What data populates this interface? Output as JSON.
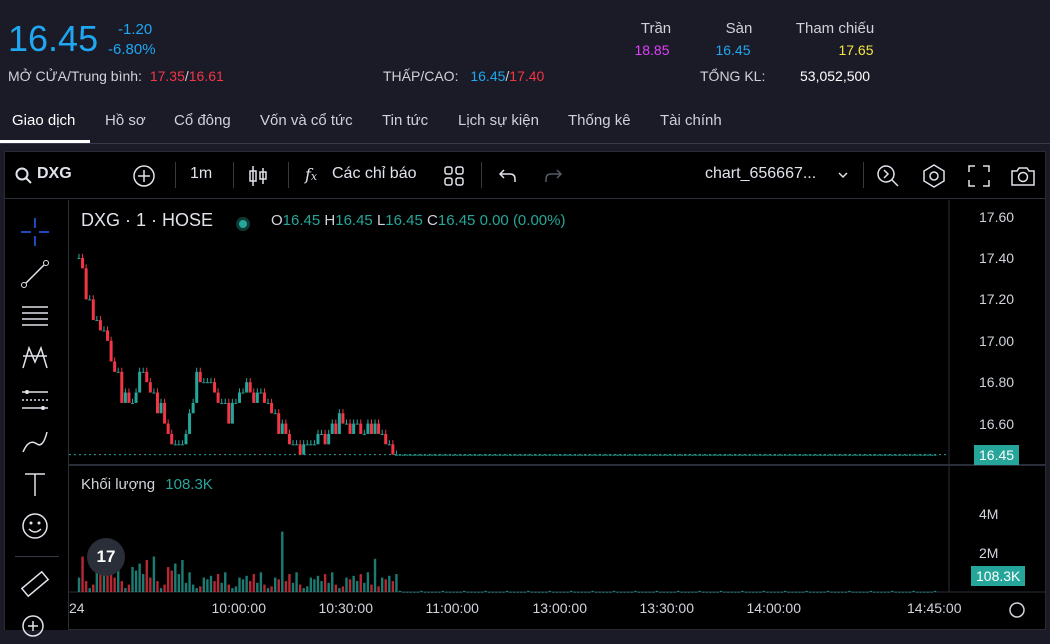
{
  "quote": {
    "price": "16.45",
    "change": "-1.20",
    "change_pct": "-6.80%",
    "open_avg_label": "MỞ CỬA/Trung bình:",
    "open": "17.35",
    "avg": "16.61",
    "low_high_label": "THẤP/CAO:",
    "low": "16.45",
    "high": "17.40",
    "ceiling_label": "Trần",
    "ceiling": "18.85",
    "floor_label": "Sàn",
    "floor": "16.45",
    "ref_label": "Tham chiếu",
    "ref": "17.65",
    "volume_label": "TỔNG KL:",
    "volume": "53,052,500",
    "slash": "/"
  },
  "tabs": [
    "Giao dịch",
    "Hồ sơ",
    "Cổ đông",
    "Vốn và cổ tức",
    "Tin tức",
    "Lịch sự kiện",
    "Thống kê",
    "Tài chính"
  ],
  "toolbar": {
    "symbol": "DXG",
    "interval": "1m",
    "indicators": "Các chỉ báo",
    "layout_name": "chart_656667..."
  },
  "legend": {
    "title": "DXG · 1 · HOSE",
    "o_label": "O",
    "o": "16.45",
    "h_label": "H",
    "h": "16.45",
    "l_label": "L",
    "l": "16.45",
    "c_label": "C",
    "c": "16.45",
    "change": "0.00 (0.00%)",
    "volume_label": "Khối lượng",
    "volume": "108.3K"
  },
  "logo_text": "17",
  "colors": {
    "up": "#26a69a",
    "down": "#f23645",
    "accent": "#1fa7f1",
    "ceiling": "#e040fb",
    "ref": "#f5e642"
  },
  "chart_data": {
    "type": "candlestick",
    "price_axis": {
      "ticks": [
        "17.60",
        "17.40",
        "17.20",
        "17.00",
        "16.80",
        "16.60"
      ],
      "last_price_tag": "16.45",
      "ylim": [
        16.4,
        17.68
      ]
    },
    "volume_axis": {
      "ticks": [
        "4M",
        "2M"
      ],
      "last_volume_tag": "108.3K",
      "ylim": [
        0,
        6000000
      ]
    },
    "x_ticks": [
      "24",
      "10:00:00",
      "10:30:00",
      "11:00:00",
      "13:00:00",
      "13:30:00",
      "14:00:00",
      "14:45:00"
    ],
    "price_path_approx": [
      {
        "t": "09:15",
        "v": 17.4
      },
      {
        "t": "09:18",
        "v": 17.15
      },
      {
        "t": "09:21",
        "v": 17.05
      },
      {
        "t": "09:24",
        "v": 16.95
      },
      {
        "t": "09:27",
        "v": 16.75
      },
      {
        "t": "09:30",
        "v": 16.7
      },
      {
        "t": "09:33",
        "v": 16.85
      },
      {
        "t": "09:36",
        "v": 16.75
      },
      {
        "t": "09:39",
        "v": 16.6
      },
      {
        "t": "09:42",
        "v": 16.48
      },
      {
        "t": "09:45",
        "v": 16.55
      },
      {
        "t": "09:48",
        "v": 16.8
      },
      {
        "t": "09:51",
        "v": 16.8
      },
      {
        "t": "09:54",
        "v": 16.75
      },
      {
        "t": "09:57",
        "v": 16.65
      },
      {
        "t": "10:00",
        "v": 16.75
      },
      {
        "t": "10:03",
        "v": 16.75
      },
      {
        "t": "10:06",
        "v": 16.75
      },
      {
        "t": "10:09",
        "v": 16.65
      },
      {
        "t": "10:12",
        "v": 16.55
      },
      {
        "t": "10:15",
        "v": 16.5
      },
      {
        "t": "10:18",
        "v": 16.48
      },
      {
        "t": "10:21",
        "v": 16.5
      },
      {
        "t": "10:24",
        "v": 16.55
      },
      {
        "t": "10:27",
        "v": 16.6
      },
      {
        "t": "10:30",
        "v": 16.6
      },
      {
        "t": "10:33",
        "v": 16.58
      },
      {
        "t": "10:36",
        "v": 16.58
      },
      {
        "t": "10:39",
        "v": 16.55
      },
      {
        "t": "10:42",
        "v": 16.48
      },
      {
        "t": "10:45",
        "v": 16.45
      },
      {
        "t": "14:45",
        "v": 16.45
      }
    ],
    "volume_spikes_approx": [
      {
        "t": "10:12",
        "v": 3100000
      },
      {
        "t": "10:38",
        "v": 1700000
      }
    ]
  }
}
